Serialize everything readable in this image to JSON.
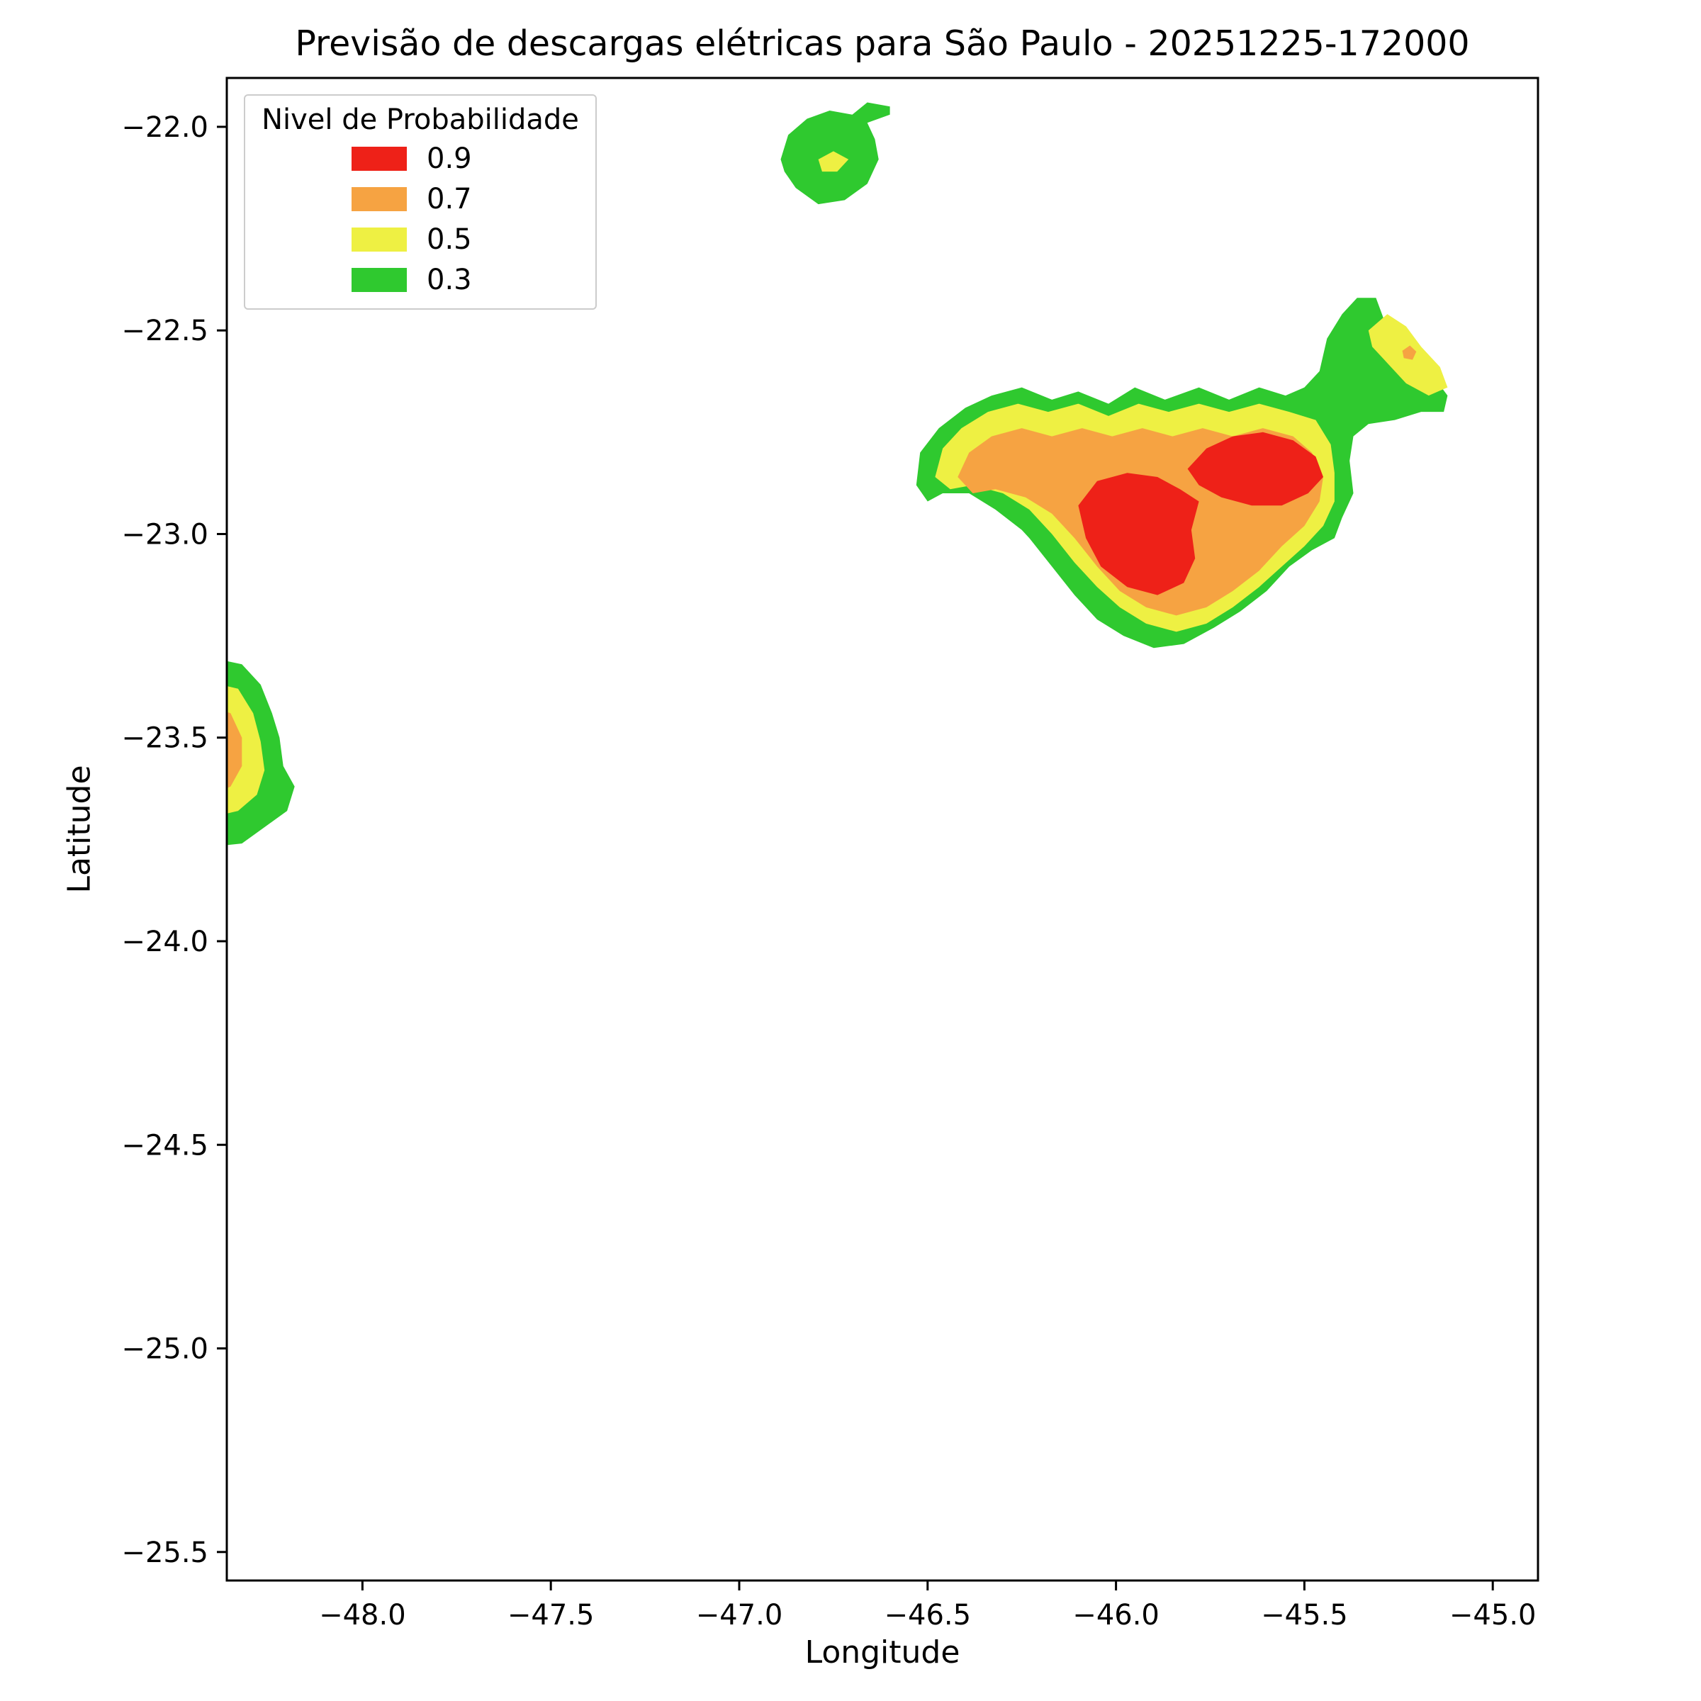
{
  "chart_data": {
    "type": "contour-map",
    "title": "Previsão de descargas elétricas para São Paulo - 20251225-172000",
    "xlabel": "Longitude",
    "ylabel": "Latitude",
    "xlim": [
      -48.36,
      -44.88
    ],
    "ylim": [
      -25.57,
      -21.88
    ],
    "grid": false,
    "xticks": [
      -48.0,
      -47.5,
      -47.0,
      -46.5,
      -46.0,
      -45.5,
      -45.0
    ],
    "xtick_labels": [
      "−48.0",
      "−47.5",
      "−47.0",
      "−46.5",
      "−46.0",
      "−45.5",
      "−45.0"
    ],
    "yticks": [
      -22.0,
      -22.5,
      -23.0,
      -23.5,
      -24.0,
      -24.5,
      -25.0,
      -25.5
    ],
    "ytick_labels": [
      "−22.0",
      "−22.5",
      "−23.0",
      "−23.5",
      "−24.0",
      "−24.5",
      "−25.0",
      "−25.5"
    ],
    "legend": {
      "title": "Nivel de Probabilidade",
      "position": "upper-left",
      "entries": [
        {
          "label": "0.9",
          "color": "#ee2118"
        },
        {
          "label": "0.7",
          "color": "#f6a342"
        },
        {
          "label": "0.5",
          "color": "#eef043"
        },
        {
          "label": "0.3",
          "color": "#2fc92f"
        }
      ]
    },
    "levels": {
      "0.3": "#2fc92f",
      "0.5": "#eef043",
      "0.7": "#f6a342",
      "0.9": "#ee2118"
    },
    "regions": [
      {
        "name": "northern-cell-outer",
        "level": "0.3",
        "points": [
          [
            -46.89,
            -22.08
          ],
          [
            -46.87,
            -22.02
          ],
          [
            -46.82,
            -21.98
          ],
          [
            -46.76,
            -21.96
          ],
          [
            -46.7,
            -21.97
          ],
          [
            -46.66,
            -21.94
          ],
          [
            -46.6,
            -21.95
          ],
          [
            -46.6,
            -21.97
          ],
          [
            -46.66,
            -21.99
          ],
          [
            -46.64,
            -22.03
          ],
          [
            -46.63,
            -22.08
          ],
          [
            -46.66,
            -22.14
          ],
          [
            -46.72,
            -22.18
          ],
          [
            -46.79,
            -22.19
          ],
          [
            -46.85,
            -22.15
          ],
          [
            -46.88,
            -22.11
          ]
        ]
      },
      {
        "name": "northern-cell-inner",
        "level": "0.5",
        "points": [
          [
            -46.79,
            -22.08
          ],
          [
            -46.75,
            -22.06
          ],
          [
            -46.71,
            -22.08
          ],
          [
            -46.74,
            -22.11
          ],
          [
            -46.78,
            -22.11
          ]
        ]
      },
      {
        "name": "main-cell-outer",
        "level": "0.3",
        "points": [
          [
            -46.53,
            -22.88
          ],
          [
            -46.52,
            -22.8
          ],
          [
            -46.47,
            -22.74
          ],
          [
            -46.4,
            -22.69
          ],
          [
            -46.33,
            -22.66
          ],
          [
            -46.25,
            -22.64
          ],
          [
            -46.17,
            -22.67
          ],
          [
            -46.1,
            -22.65
          ],
          [
            -46.02,
            -22.68
          ],
          [
            -45.95,
            -22.64
          ],
          [
            -45.87,
            -22.67
          ],
          [
            -45.78,
            -22.64
          ],
          [
            -45.7,
            -22.67
          ],
          [
            -45.62,
            -22.64
          ],
          [
            -45.55,
            -22.66
          ],
          [
            -45.5,
            -22.64
          ],
          [
            -45.46,
            -22.6
          ],
          [
            -45.44,
            -22.52
          ],
          [
            -45.4,
            -22.46
          ],
          [
            -45.36,
            -22.42
          ],
          [
            -45.31,
            -22.42
          ],
          [
            -45.29,
            -22.47
          ],
          [
            -45.25,
            -22.52
          ],
          [
            -45.21,
            -22.56
          ],
          [
            -45.16,
            -22.61
          ],
          [
            -45.12,
            -22.66
          ],
          [
            -45.13,
            -22.7
          ],
          [
            -45.19,
            -22.7
          ],
          [
            -45.26,
            -22.72
          ],
          [
            -45.33,
            -22.73
          ],
          [
            -45.37,
            -22.76
          ],
          [
            -45.38,
            -22.82
          ],
          [
            -45.37,
            -22.9
          ],
          [
            -45.4,
            -22.96
          ],
          [
            -45.42,
            -23.01
          ],
          [
            -45.48,
            -23.04
          ],
          [
            -45.54,
            -23.08
          ],
          [
            -45.6,
            -23.14
          ],
          [
            -45.67,
            -23.19
          ],
          [
            -45.74,
            -23.23
          ],
          [
            -45.82,
            -23.27
          ],
          [
            -45.9,
            -23.28
          ],
          [
            -45.98,
            -23.25
          ],
          [
            -46.05,
            -23.21
          ],
          [
            -46.11,
            -23.15
          ],
          [
            -46.17,
            -23.08
          ],
          [
            -46.23,
            -23.01
          ],
          [
            -46.25,
            -22.99
          ],
          [
            -46.32,
            -22.94
          ],
          [
            -46.39,
            -22.9
          ],
          [
            -46.46,
            -22.9
          ],
          [
            -46.5,
            -22.92
          ]
        ]
      },
      {
        "name": "main-cell-mid",
        "level": "0.5",
        "points": [
          [
            -46.48,
            -22.86
          ],
          [
            -46.46,
            -22.79
          ],
          [
            -46.41,
            -22.74
          ],
          [
            -46.34,
            -22.7
          ],
          [
            -46.26,
            -22.68
          ],
          [
            -46.18,
            -22.7
          ],
          [
            -46.1,
            -22.68
          ],
          [
            -46.02,
            -22.71
          ],
          [
            -45.94,
            -22.68
          ],
          [
            -45.86,
            -22.7
          ],
          [
            -45.78,
            -22.68
          ],
          [
            -45.7,
            -22.7
          ],
          [
            -45.62,
            -22.68
          ],
          [
            -45.54,
            -22.7
          ],
          [
            -45.47,
            -22.72
          ],
          [
            -45.43,
            -22.78
          ],
          [
            -45.42,
            -22.85
          ],
          [
            -45.42,
            -22.92
          ],
          [
            -45.45,
            -22.98
          ],
          [
            -45.5,
            -23.03
          ],
          [
            -45.56,
            -23.08
          ],
          [
            -45.62,
            -23.13
          ],
          [
            -45.69,
            -23.18
          ],
          [
            -45.76,
            -23.22
          ],
          [
            -45.84,
            -23.24
          ],
          [
            -45.92,
            -23.22
          ],
          [
            -45.99,
            -23.18
          ],
          [
            -46.05,
            -23.13
          ],
          [
            -46.11,
            -23.07
          ],
          [
            -46.17,
            -23.0
          ],
          [
            -46.23,
            -22.94
          ],
          [
            -46.3,
            -22.9
          ],
          [
            -46.38,
            -22.88
          ],
          [
            -46.44,
            -22.89
          ]
        ]
      },
      {
        "name": "main-cell-high",
        "level": "0.7",
        "points": [
          [
            -46.42,
            -22.86
          ],
          [
            -46.39,
            -22.8
          ],
          [
            -46.33,
            -22.76
          ],
          [
            -46.25,
            -22.74
          ],
          [
            -46.17,
            -22.76
          ],
          [
            -46.09,
            -22.74
          ],
          [
            -46.01,
            -22.76
          ],
          [
            -45.93,
            -22.74
          ],
          [
            -45.85,
            -22.76
          ],
          [
            -45.77,
            -22.74
          ],
          [
            -45.69,
            -22.76
          ],
          [
            -45.61,
            -22.74
          ],
          [
            -45.53,
            -22.76
          ],
          [
            -45.48,
            -22.8
          ],
          [
            -45.45,
            -22.86
          ],
          [
            -45.46,
            -22.92
          ],
          [
            -45.5,
            -22.98
          ],
          [
            -45.56,
            -23.03
          ],
          [
            -45.62,
            -23.09
          ],
          [
            -45.69,
            -23.14
          ],
          [
            -45.76,
            -23.18
          ],
          [
            -45.84,
            -23.2
          ],
          [
            -45.92,
            -23.18
          ],
          [
            -45.99,
            -23.14
          ],
          [
            -46.05,
            -23.08
          ],
          [
            -46.11,
            -23.01
          ],
          [
            -46.17,
            -22.95
          ],
          [
            -46.24,
            -22.91
          ],
          [
            -46.32,
            -22.89
          ],
          [
            -46.38,
            -22.9
          ]
        ]
      },
      {
        "name": "main-cell-core-west",
        "level": "0.9",
        "points": [
          [
            -46.1,
            -22.93
          ],
          [
            -46.05,
            -22.87
          ],
          [
            -45.97,
            -22.85
          ],
          [
            -45.89,
            -22.86
          ],
          [
            -45.83,
            -22.89
          ],
          [
            -45.78,
            -22.92
          ],
          [
            -45.8,
            -22.99
          ],
          [
            -45.79,
            -23.06
          ],
          [
            -45.82,
            -23.12
          ],
          [
            -45.89,
            -23.15
          ],
          [
            -45.97,
            -23.13
          ],
          [
            -46.04,
            -23.08
          ],
          [
            -46.08,
            -23.01
          ]
        ]
      },
      {
        "name": "main-cell-core-east",
        "level": "0.9",
        "points": [
          [
            -45.81,
            -22.84
          ],
          [
            -45.76,
            -22.79
          ],
          [
            -45.69,
            -22.76
          ],
          [
            -45.61,
            -22.75
          ],
          [
            -45.53,
            -22.77
          ],
          [
            -45.47,
            -22.81
          ],
          [
            -45.45,
            -22.86
          ],
          [
            -45.49,
            -22.9
          ],
          [
            -45.56,
            -22.93
          ],
          [
            -45.64,
            -22.93
          ],
          [
            -45.72,
            -22.91
          ],
          [
            -45.78,
            -22.88
          ]
        ]
      },
      {
        "name": "east-arm-inner",
        "level": "0.5",
        "points": [
          [
            -45.33,
            -22.5
          ],
          [
            -45.28,
            -22.46
          ],
          [
            -45.23,
            -22.49
          ],
          [
            -45.19,
            -22.54
          ],
          [
            -45.14,
            -22.59
          ],
          [
            -45.12,
            -22.64
          ],
          [
            -45.17,
            -22.66
          ],
          [
            -45.23,
            -22.63
          ],
          [
            -45.28,
            -22.58
          ],
          [
            -45.32,
            -22.54
          ]
        ]
      },
      {
        "name": "east-arm-spot",
        "level": "0.7",
        "points": [
          [
            -45.24,
            -22.55
          ],
          [
            -45.22,
            -22.537
          ],
          [
            -45.203,
            -22.552
          ],
          [
            -45.213,
            -22.572
          ],
          [
            -45.236,
            -22.568
          ]
        ]
      },
      {
        "name": "western-cell-outer",
        "level": "0.3",
        "points": [
          [
            -48.42,
            -23.3
          ],
          [
            -48.32,
            -23.32
          ],
          [
            -48.27,
            -23.37
          ],
          [
            -48.24,
            -23.44
          ],
          [
            -48.22,
            -23.5
          ],
          [
            -48.21,
            -23.57
          ],
          [
            -48.18,
            -23.62
          ],
          [
            -48.2,
            -23.68
          ],
          [
            -48.26,
            -23.72
          ],
          [
            -48.32,
            -23.76
          ],
          [
            -48.42,
            -23.77
          ]
        ]
      },
      {
        "name": "western-cell-mid",
        "level": "0.5",
        "points": [
          [
            -48.42,
            -23.36
          ],
          [
            -48.33,
            -23.38
          ],
          [
            -48.29,
            -23.44
          ],
          [
            -48.27,
            -23.51
          ],
          [
            -48.26,
            -23.58
          ],
          [
            -48.28,
            -23.64
          ],
          [
            -48.33,
            -23.68
          ],
          [
            -48.42,
            -23.7
          ]
        ]
      },
      {
        "name": "western-cell-high",
        "level": "0.7",
        "points": [
          [
            -48.42,
            -23.42
          ],
          [
            -48.35,
            -23.44
          ],
          [
            -48.32,
            -23.5
          ],
          [
            -48.32,
            -23.57
          ],
          [
            -48.35,
            -23.62
          ],
          [
            -48.42,
            -23.65
          ]
        ]
      },
      {
        "name": "western-cell-core",
        "level": "0.9",
        "points": [
          [
            -48.42,
            -23.46
          ],
          [
            -48.37,
            -23.48
          ],
          [
            -48.36,
            -23.52
          ],
          [
            -48.37,
            -23.55
          ],
          [
            -48.42,
            -23.57
          ]
        ]
      }
    ]
  }
}
